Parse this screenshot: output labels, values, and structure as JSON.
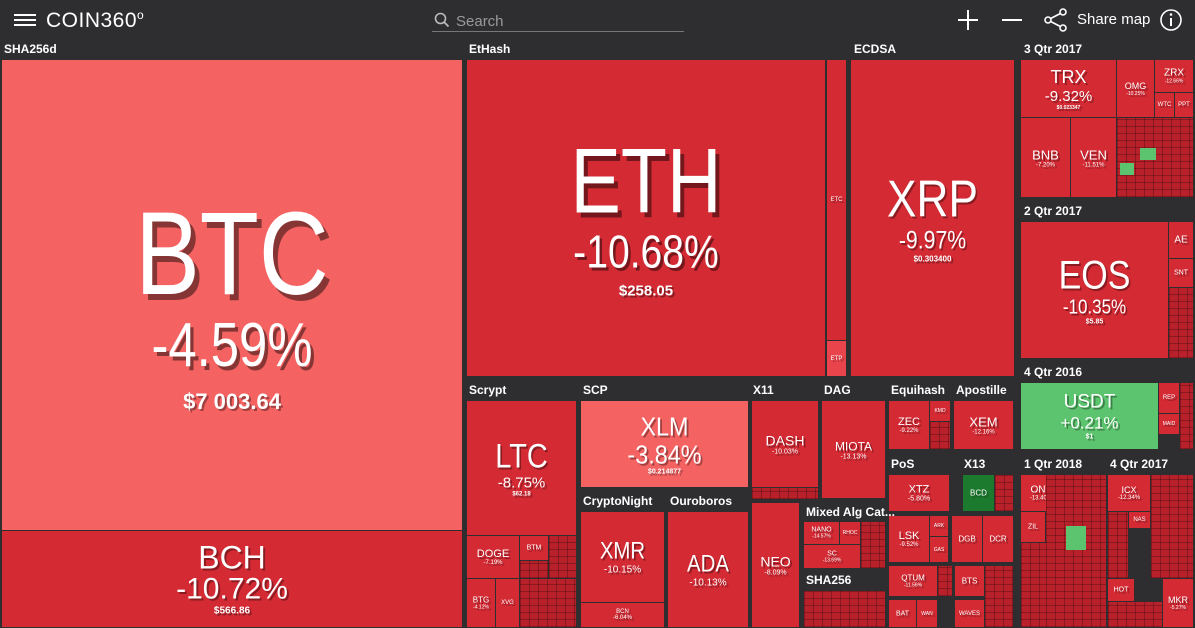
{
  "header": {
    "logo": "COIN360",
    "logo_mark": "o",
    "search_placeholder": "Search",
    "share_label": "Share map"
  },
  "sectors": {
    "sha256d": "SHA256d",
    "ethash": "EtHash",
    "ecdsa": "ECDSA",
    "q3_2017": "3 Qtr 2017",
    "q2_2017": "2 Qtr 2017",
    "q4_2016": "4 Qtr 2016",
    "q1_2018": "1 Qtr 2018",
    "q4_2017": "4 Qtr 2017",
    "scrypt": "Scrypt",
    "scp": "SCP",
    "x11": "X11",
    "dag": "DAG",
    "equihash": "Equihash",
    "apostille": "Apostille",
    "cryptonight": "CryptoNight",
    "ouroboros": "Ouroboros",
    "pos": "PoS",
    "x13": "X13",
    "mixed": "Mixed Alg Cat...",
    "sha256": "SHA256"
  },
  "tiles": {
    "btc": {
      "symbol": "BTC",
      "change": "-4.59%",
      "price": "$7 003.64"
    },
    "bch": {
      "symbol": "BCH",
      "change": "-10.72%",
      "price": "$566.86"
    },
    "eth": {
      "symbol": "ETH",
      "change": "-10.68%",
      "price": "$258.05"
    },
    "etc": {
      "symbol": "ETC"
    },
    "etp": {
      "symbol": "ETP"
    },
    "xrp": {
      "symbol": "XRP",
      "change": "-9.97%",
      "price": "$0.303400"
    },
    "trx": {
      "symbol": "TRX",
      "change": "-9.32%",
      "price": "$0.023347"
    },
    "omg": {
      "symbol": "OMG",
      "change": "-10.25%"
    },
    "zrx": {
      "symbol": "ZRX",
      "change": "-12.66%"
    },
    "wtc": {
      "symbol": "WTC"
    },
    "ppt": {
      "symbol": "PPT"
    },
    "bnb": {
      "symbol": "BNB",
      "change": "-7.20%"
    },
    "ven": {
      "symbol": "VEN",
      "change": "-11.51%"
    },
    "eos": {
      "symbol": "EOS",
      "change": "-10.35%",
      "price": "$5.85"
    },
    "ae": {
      "symbol": "AE"
    },
    "snt": {
      "symbol": "SNT"
    },
    "usdt": {
      "symbol": "USDT",
      "change": "+0.21%",
      "price": "$1"
    },
    "rep": {
      "symbol": "REP"
    },
    "maid": {
      "symbol": "MAID"
    },
    "ltc": {
      "symbol": "LTC",
      "change": "-8.75%",
      "price": "$62.18"
    },
    "doge": {
      "symbol": "DOGE",
      "change": "-7.19%"
    },
    "btm": {
      "symbol": "BTM"
    },
    "btg": {
      "symbol": "BTG",
      "change": "-4.12%"
    },
    "xvg": {
      "symbol": "XVG"
    },
    "xlm": {
      "symbol": "XLM",
      "change": "-3.84%",
      "price": "$0.214877"
    },
    "dash": {
      "symbol": "DASH",
      "change": "-10.03%"
    },
    "miota": {
      "symbol": "MIOTA",
      "change": "-13.13%"
    },
    "zec": {
      "symbol": "ZEC",
      "change": "-9.22%"
    },
    "kmd": {
      "symbol": "KMD"
    },
    "xem": {
      "symbol": "XEM",
      "change": "-12.16%"
    },
    "xmr": {
      "symbol": "XMR",
      "change": "-10.15%"
    },
    "bcn": {
      "symbol": "BCN",
      "change": "-6.04%"
    },
    "ada": {
      "symbol": "ADA",
      "change": "-10.13%"
    },
    "neo": {
      "symbol": "NEO",
      "change": "-8.09%"
    },
    "xtz": {
      "symbol": "XTZ",
      "change": "-5.80%"
    },
    "bcd": {
      "symbol": "BCD"
    },
    "lsk": {
      "symbol": "LSK",
      "change": "-9.52%"
    },
    "ark": {
      "symbol": "ARK"
    },
    "gas": {
      "symbol": "GAS"
    },
    "dgb": {
      "symbol": "DGB"
    },
    "dcr": {
      "symbol": "DCR"
    },
    "qtum": {
      "symbol": "QTUM",
      "change": "-11.56%"
    },
    "bts": {
      "symbol": "BTS"
    },
    "waves": {
      "symbol": "WAVES"
    },
    "bat": {
      "symbol": "BAT"
    },
    "wan": {
      "symbol": "WAN"
    },
    "nano": {
      "symbol": "NANO",
      "change": "-14.57%"
    },
    "rhoc": {
      "symbol": "RHOC"
    },
    "sc": {
      "symbol": "SC",
      "change": "-13.69%"
    },
    "ont": {
      "symbol": "ONT",
      "change": "-13.40%"
    },
    "zil": {
      "symbol": "ZIL"
    },
    "icx": {
      "symbol": "ICX",
      "change": "-12.34%"
    },
    "nas": {
      "symbol": "NAS"
    },
    "hot": {
      "symbol": "HOT"
    },
    "mkr": {
      "symbol": "MKR",
      "change": "-5.27%"
    }
  }
}
